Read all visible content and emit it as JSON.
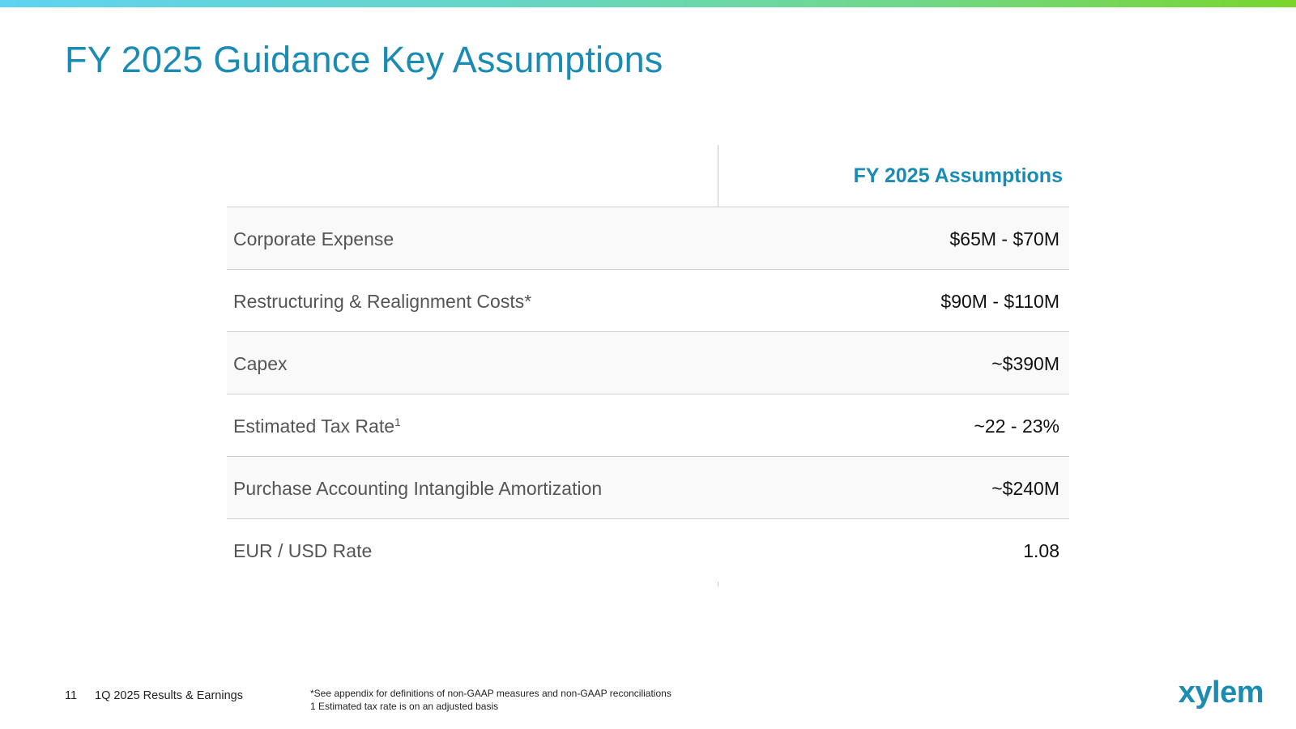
{
  "slide": {
    "title": "FY 2025 Guidance Key Assumptions"
  },
  "table": {
    "header": "FY 2025 Assumptions",
    "rows": [
      {
        "label": "Corporate Expense",
        "sup": "",
        "value": "$65M - $70M"
      },
      {
        "label": "Restructuring & Realignment Costs*",
        "sup": "",
        "value": "$90M - $110M"
      },
      {
        "label": "Capex",
        "sup": "",
        "value": "~$390M"
      },
      {
        "label": "Estimated Tax Rate",
        "sup": "1",
        "value": "~22 - 23%"
      },
      {
        "label": "Purchase Accounting Intangible Amortization",
        "sup": "",
        "value": "~$240M"
      },
      {
        "label": "EUR / USD Rate",
        "sup": "",
        "value": "1.08"
      }
    ]
  },
  "footer": {
    "page_number": "11",
    "presentation_title": "1Q 2025 Results & Earnings",
    "footnote_1": "*See appendix for definitions of non-GAAP measures and non-GAAP reconciliations",
    "footnote_2": "1 Estimated tax rate is on an adjusted basis",
    "logo_text": "xylem"
  },
  "colors": {
    "accent": "#1a8bb3",
    "gradient_start": "#5fd3f0",
    "gradient_end": "#7ad52b"
  }
}
